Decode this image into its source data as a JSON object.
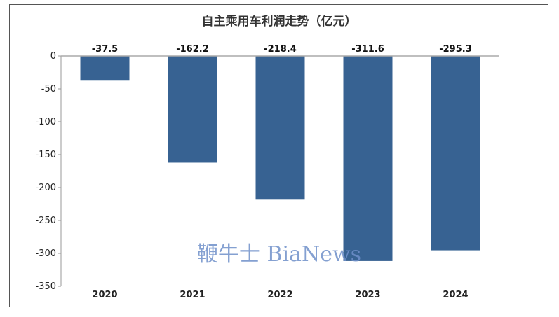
{
  "chart_data": {
    "type": "bar",
    "title": "自主乘用车利润走势（亿元）",
    "xlabel": "",
    "ylabel": "",
    "categories": [
      "2020",
      "2021",
      "2022",
      "2023",
      "2024"
    ],
    "values": [
      -37.5,
      -162.2,
      -218.4,
      -311.6,
      -295.3
    ],
    "data_labels": [
      "-37.5",
      "-162.2",
      "-218.4",
      "-311.6",
      "-295.3"
    ],
    "ylim": [
      -350,
      0
    ],
    "yticks": [
      0,
      -50,
      -100,
      -150,
      -200,
      -250,
      -300,
      -350
    ],
    "grid": false,
    "legend": "none",
    "bar_color": "#376292"
  },
  "watermark": {
    "text": "鞭牛士 BiaNews",
    "color": "#6f8fc9"
  }
}
